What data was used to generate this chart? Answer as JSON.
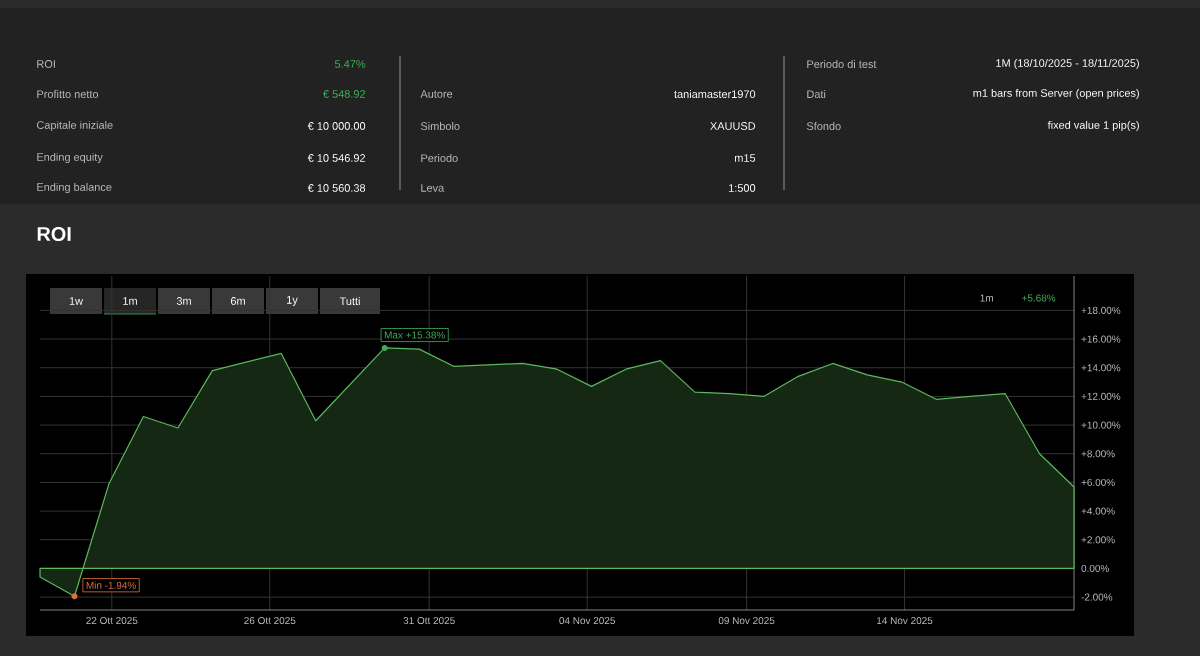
{
  "chart_data": {
    "type": "area",
    "title": "ROI",
    "x": [
      "2025-10-20",
      "2025-10-21",
      "2025-10-22",
      "2025-10-23",
      "2025-10-24",
      "2025-10-25",
      "2025-10-27",
      "2025-10-28",
      "2025-10-30",
      "2025-10-31",
      "2025-11-01",
      "2025-11-03",
      "2025-11-04",
      "2025-11-05",
      "2025-11-06",
      "2025-11-07",
      "2025-11-08",
      "2025-11-09",
      "2025-11-10",
      "2025-11-11",
      "2025-11-12",
      "2025-11-13",
      "2025-11-14",
      "2025-11-15",
      "2025-11-16",
      "2025-11-17",
      "2025-11-18",
      "2025-11-19"
    ],
    "series": [
      {
        "color": "#5cb85c",
        "values": [
          -0.6,
          -1.94,
          5.9,
          10.6,
          9.8,
          13.8,
          15.0,
          10.3,
          15.38,
          15.3,
          14.1,
          14.3,
          13.9,
          12.7,
          13.9,
          14.5,
          12.3,
          12.2,
          12.0,
          13.4,
          14.3,
          13.5,
          13.0,
          11.8,
          12.0,
          12.2,
          8.0,
          5.68
        ]
      }
    ],
    "xlim": [
      "2025-10-20",
      "2025-11-19"
    ],
    "xticks": [
      {
        "value": "2025-10-22T02:00",
        "label": "22 Ott 2025"
      },
      {
        "value": "2025-10-26T16:00",
        "label": "26 Ott 2025"
      },
      {
        "value": "2025-10-31T07:00",
        "label": "31 Ott 2025"
      },
      {
        "value": "2025-11-04T21:00",
        "label": "04 Nov 2025"
      },
      {
        "value": "2025-11-09T12:00",
        "label": "09 Nov 2025"
      },
      {
        "value": "2025-11-14T02:00",
        "label": "14 Nov 2025"
      }
    ],
    "ylim": [
      -2.9,
      20.4
    ],
    "yticks": [
      {
        "value": -2,
        "label": "-2.00%"
      },
      {
        "value": 0,
        "label": "0.00%"
      },
      {
        "value": 2,
        "label": "+2.00%"
      },
      {
        "value": 4,
        "label": "+4.00%"
      },
      {
        "value": 6,
        "label": "+6.00%"
      },
      {
        "value": 8,
        "label": "+8.00%"
      },
      {
        "value": 10,
        "label": "+10.00%"
      },
      {
        "value": 12,
        "label": "+12.00%"
      },
      {
        "value": 14,
        "label": "+14.00%"
      },
      {
        "value": 16,
        "label": "+16.00%"
      },
      {
        "value": 18,
        "label": "+18.00%"
      }
    ],
    "grid": true,
    "marker": "none",
    "line_style": "solid",
    "annotations": [
      "ROI",
      "5.47%",
      "Profitto netto",
      "€ 548.92",
      "Capitale iniziale",
      "€ 10 000.00",
      "Ending equity",
      "€ 10 546.92",
      "Ending balance",
      "€ 10 560.38",
      "Autore",
      "taniamaster1970",
      "Simbolo",
      "XAUUSD",
      "Periodo",
      "m15",
      "Leva",
      "1:500",
      "Periodo di test",
      "1M (18/10/2025 - 18/11/2025)",
      "Dati",
      "m1 bars from Server (open prices)",
      "Sfondo",
      "fixed value 1 pip(s)",
      "1w",
      "1m",
      "3m",
      "6m",
      "1y",
      "Tutti",
      "1m",
      "+5.68%",
      {
        "text": "Max +15.38%",
        "x": "2025-10-30",
        "y": 15.38
      },
      {
        "text": "Min -1.94%",
        "x": "2025-10-21",
        "y": -1.94
      }
    ]
  }
}
